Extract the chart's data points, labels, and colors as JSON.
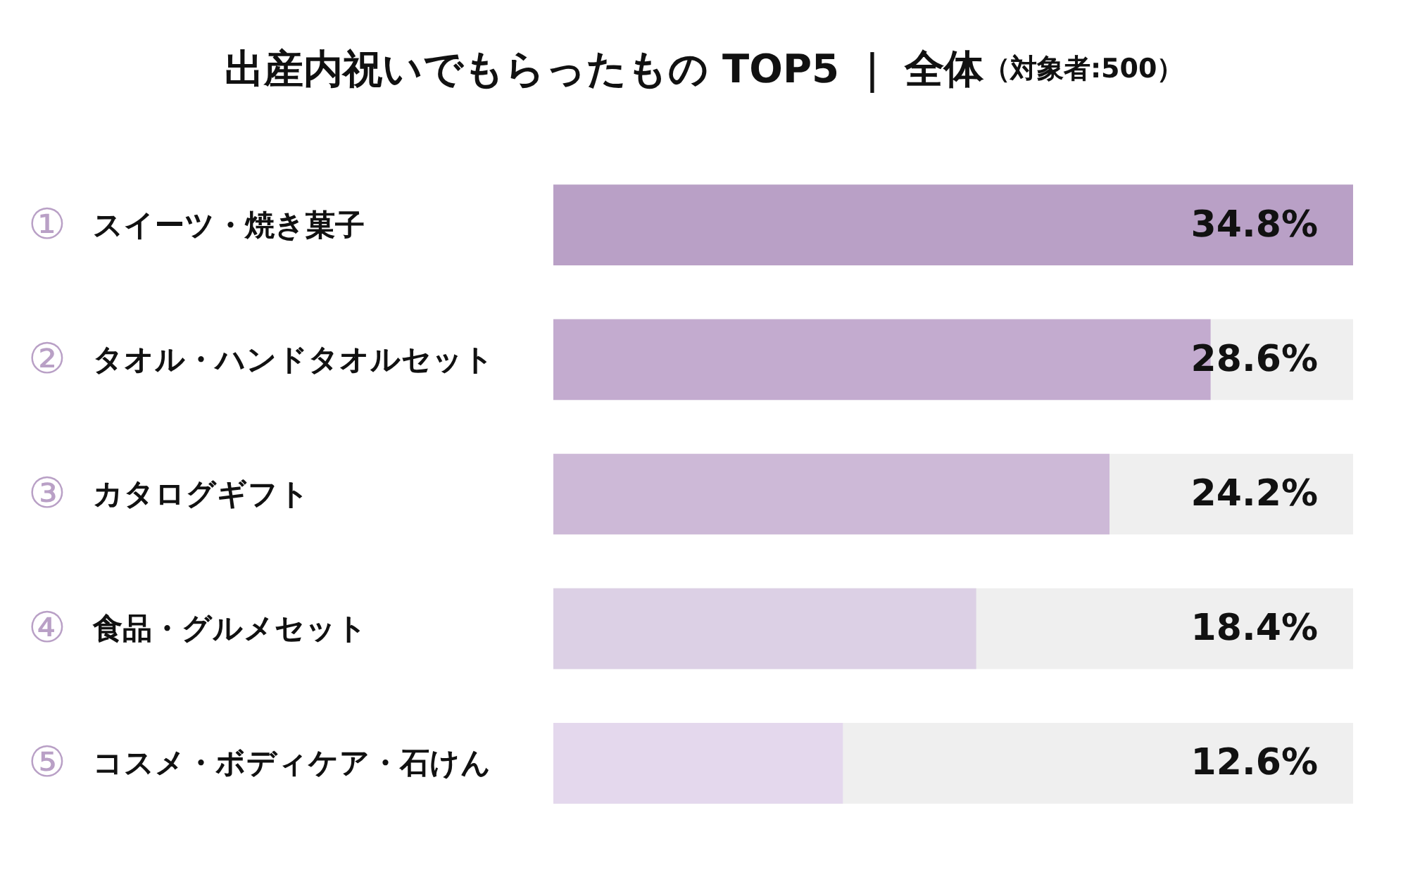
{
  "chart_data": {
    "type": "bar",
    "orientation": "horizontal",
    "title": "出産内祝いでもらったもの TOP5 ｜ 全体",
    "subtitle": "（対象者:500）",
    "categories": [
      "①スイーツ・焼き菓子",
      "②タオル・ハンドタオルセット",
      "③カタログギフト",
      "④食品・グルメセット",
      "⑤コスメ・ボディケア・石けん"
    ],
    "values": [
      34.8,
      28.6,
      24.2,
      18.4,
      12.6
    ],
    "colors": [
      "#b9a0c6",
      "#c3abcf",
      "#cdb9d7",
      "#dcd0e5",
      "#e4d8ed"
    ],
    "value_labels": [
      "34.8%",
      "28.6%",
      "24.2%",
      "18.4%",
      "12.6%"
    ],
    "xlim": [
      0,
      34.8
    ]
  }
}
